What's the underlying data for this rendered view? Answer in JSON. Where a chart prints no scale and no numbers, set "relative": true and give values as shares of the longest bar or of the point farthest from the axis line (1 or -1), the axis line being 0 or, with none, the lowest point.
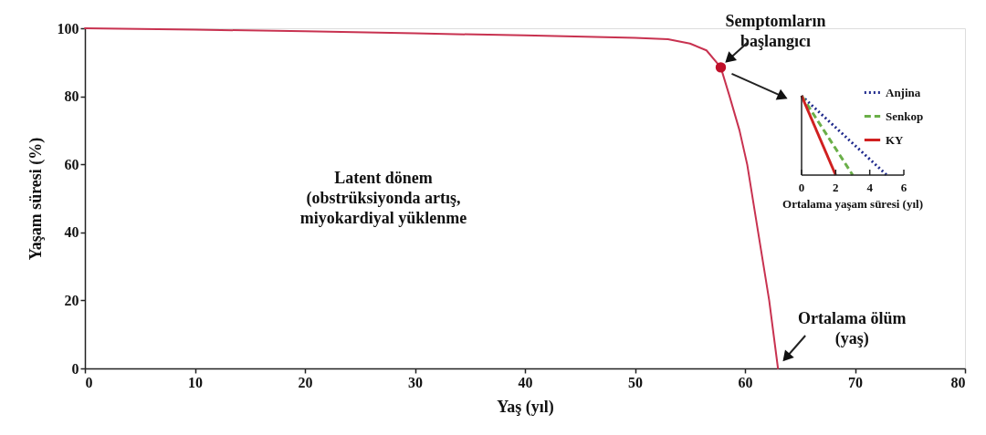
{
  "chart_data": [
    {
      "type": "line",
      "xlabel": "Yaş (yıl)",
      "ylabel": "Yaşam süresi (%)",
      "xlim": [
        0,
        80
      ],
      "xticks": [
        0,
        10,
        20,
        30,
        40,
        50,
        60,
        70,
        80
      ],
      "ylim": [
        0,
        100
      ],
      "yticks": [
        0,
        20,
        40,
        60,
        80,
        100
      ],
      "grid": false,
      "series": [
        {
          "color": "#c83250",
          "x": [
            0,
            10,
            20,
            30,
            40,
            50,
            53,
            55,
            56.5,
            57.8,
            58.6,
            59.5,
            60.2,
            61.2,
            62.2,
            63
          ],
          "values": [
            100,
            99.6,
            99.1,
            98.5,
            97.9,
            97.2,
            96.8,
            95.5,
            93.5,
            88.5,
            80,
            70,
            60,
            40,
            20,
            0
          ]
        },
        {
          "type": "scatter",
          "color": "#c0102a",
          "x": [
            57.8
          ],
          "values": [
            88.5
          ]
        }
      ],
      "annotations": [
        {
          "text": "Semptomların\nbaşlangıcı",
          "x": 57.8,
          "y": 88.5
        },
        "Latent dönem\n(obstrüksiyonda artış,\nmiyokardiyal yüklenme",
        {
          "text": "Ortalama ölüm\n(yaş)",
          "x": 63,
          "y": 0
        }
      ]
    },
    {
      "type": "line",
      "relative": true,
      "xlabel": "Ortalama yaşam süresi (yıl)",
      "xlim": [
        0,
        6
      ],
      "xticks": [
        0,
        2,
        4,
        6
      ],
      "legend": "top right",
      "series": [
        {
          "name": "Anjina",
          "color": "#1f2a8c",
          "line_style": "dotted",
          "x": [
            0,
            5
          ],
          "values": [
            1,
            0
          ]
        },
        {
          "name": "Senkop",
          "color": "#6aaf48",
          "line_style": "dashed",
          "x": [
            0,
            3
          ],
          "values": [
            1,
            0
          ]
        },
        {
          "name": "KY",
          "color": "#d02020",
          "line_style": "solid",
          "x": [
            0,
            2
          ],
          "values": [
            1,
            0
          ]
        }
      ]
    }
  ]
}
